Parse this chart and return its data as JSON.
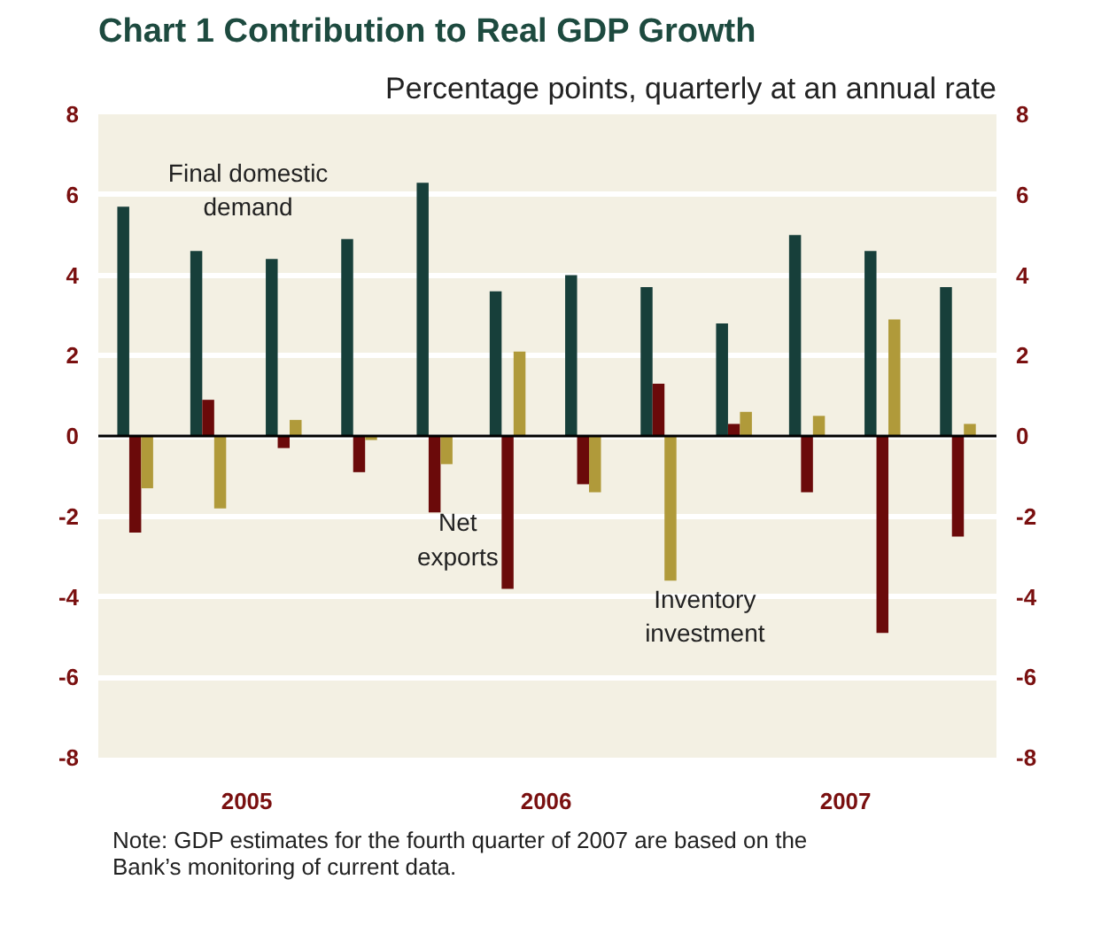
{
  "chart_data": {
    "type": "bar",
    "title": "Chart 1    Contribution to Real GDP Growth",
    "subtitle": "Percentage points, quarterly at an annual rate",
    "x": [
      "2005-02-15",
      "2005-05-15",
      "2005-08-15",
      "2005-11-15",
      "2006-02-15",
      "2006-05-15",
      "2006-08-15",
      "2006-11-15",
      "2007-02-15",
      "2007-05-15",
      "2007-08-15",
      "2007-11-15"
    ],
    "xlim": [
      "2005-01-01",
      "2008-01-01"
    ],
    "xticks": [
      {
        "value": "2005-07-01",
        "label": "2005"
      },
      {
        "value": "2006-07-01",
        "label": "2006"
      },
      {
        "value": "2007-07-01",
        "label": "2007"
      }
    ],
    "series": [
      {
        "name": "Final domestic demand",
        "color": "#173f3a",
        "values": [
          5.7,
          4.6,
          4.4,
          4.9,
          6.3,
          3.6,
          4.0,
          3.7,
          2.8,
          5.0,
          4.6,
          3.7
        ]
      },
      {
        "name": "Net exports",
        "color": "#6b0a0a",
        "values": [
          -2.4,
          0.9,
          -0.3,
          -0.9,
          -1.9,
          -3.8,
          -1.2,
          1.3,
          0.3,
          -1.4,
          -4.9,
          -2.5
        ]
      },
      {
        "name": "Inventory investment",
        "color": "#b09a3a",
        "values": [
          -1.3,
          -1.8,
          0.4,
          -0.1,
          -0.7,
          2.1,
          -1.4,
          -3.6,
          0.6,
          0.5,
          2.9,
          0.3
        ]
      }
    ],
    "ylim": [
      -8,
      8
    ],
    "yticks": [
      -8,
      -6,
      -4,
      -2,
      0,
      2,
      4,
      6,
      8
    ],
    "y2lim": [
      -8,
      8
    ],
    "y2ticks": [
      -8,
      -6,
      -4,
      -2,
      0,
      2,
      4,
      6,
      8
    ],
    "grid": "y",
    "annotations": [
      "Note:  GDP estimates for the fourth quarter of 2007 are based on the\nBank’s monitoring of current data."
    ]
  }
}
